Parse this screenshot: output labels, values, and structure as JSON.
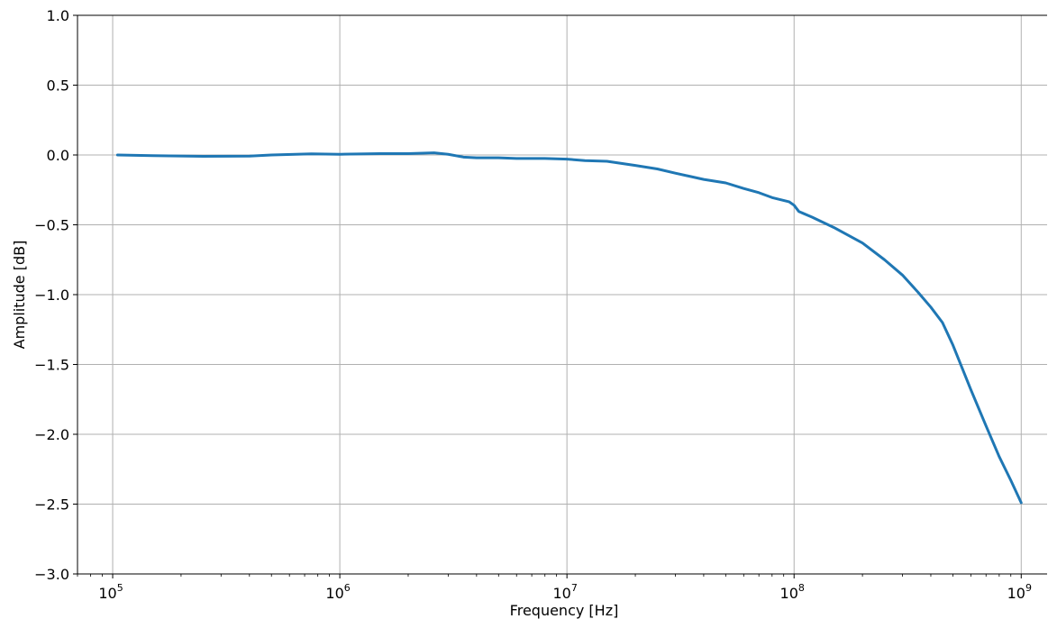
{
  "chart_data": {
    "type": "line",
    "title": "",
    "xlabel": "Frequency [Hz]",
    "ylabel": "Amplitude [dB]",
    "xscale": "log",
    "xlim": [
      70000,
      1300000000
    ],
    "ylim": [
      -3.0,
      1.0
    ],
    "grid": true,
    "legend": "none",
    "colors": {
      "line": "#1f77b4",
      "grid": "#b0b0b0",
      "axis": "#000000"
    },
    "x_ticks": [
      {
        "value": 100000,
        "base": "10",
        "exp": "5"
      },
      {
        "value": 1000000,
        "base": "10",
        "exp": "6"
      },
      {
        "value": 10000000,
        "base": "10",
        "exp": "7"
      },
      {
        "value": 100000000,
        "base": "10",
        "exp": "8"
      },
      {
        "value": 1000000000,
        "base": "10",
        "exp": "9"
      }
    ],
    "y_ticks": [
      {
        "value": 1.0,
        "label": "1.0"
      },
      {
        "value": 0.5,
        "label": "0.5"
      },
      {
        "value": 0.0,
        "label": "0.0"
      },
      {
        "value": -0.5,
        "label": "−0.5"
      },
      {
        "value": -1.0,
        "label": "−1.0"
      },
      {
        "value": -1.5,
        "label": "−1.5"
      },
      {
        "value": -2.0,
        "label": "−2.0"
      },
      {
        "value": -2.5,
        "label": "−2.5"
      },
      {
        "value": -3.0,
        "label": "−3.0"
      }
    ],
    "series": [
      {
        "x": [
          105000,
          150000,
          250000,
          400000,
          500000,
          750000,
          1000000,
          1500000,
          2000000,
          2600000,
          3000000,
          3500000,
          4000000,
          5000000,
          6000000,
          8000000,
          10000000,
          12000000,
          15000000,
          20000000,
          25000000,
          30000000,
          40000000,
          50000000,
          60000000,
          70000000,
          80000000,
          95000000,
          100000000,
          105000000,
          120000000,
          150000000,
          200000000,
          250000000,
          300000000,
          350000000,
          400000000,
          450000000,
          500000000,
          600000000,
          700000000,
          800000000,
          900000000,
          1000000000
        ],
        "y": [
          0.0,
          -0.005,
          -0.01,
          -0.008,
          0.0,
          0.008,
          0.005,
          0.01,
          0.01,
          0.015,
          0.005,
          -0.015,
          -0.02,
          -0.02,
          -0.025,
          -0.025,
          -0.03,
          -0.04,
          -0.045,
          -0.075,
          -0.1,
          -0.13,
          -0.175,
          -0.2,
          -0.24,
          -0.27,
          -0.305,
          -0.335,
          -0.36,
          -0.405,
          -0.445,
          -0.52,
          -0.63,
          -0.75,
          -0.86,
          -0.98,
          -1.09,
          -1.2,
          -1.36,
          -1.68,
          -1.94,
          -2.16,
          -2.33,
          -2.49
        ]
      }
    ]
  }
}
